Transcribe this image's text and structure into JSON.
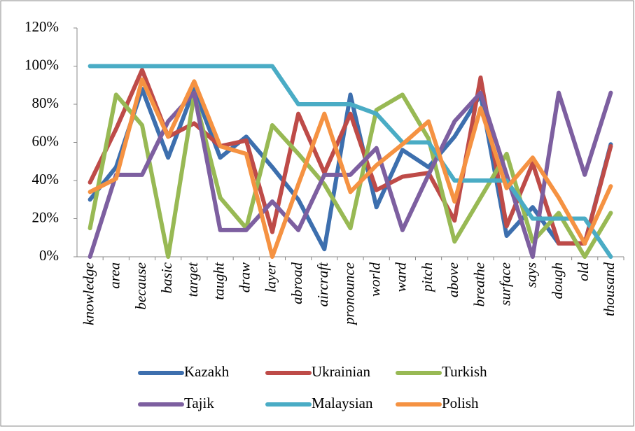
{
  "chart_data": {
    "type": "line",
    "categories": [
      "knowledge",
      "area",
      "because",
      "basic",
      "target",
      "taught",
      "draw",
      "layer",
      "abroad",
      "aircraft",
      "pronounce",
      "world",
      "ward",
      "pitch",
      "above",
      "breathe",
      "surface",
      "says",
      "dough",
      "old",
      "thousand"
    ],
    "series": [
      {
        "name": "Kazakh",
        "color": "#3d6fae",
        "values": [
          30,
          47,
          88,
          52,
          88,
          52,
          63,
          47,
          30,
          4,
          85,
          26,
          56,
          47,
          63,
          85,
          11,
          26,
          7,
          7,
          59
        ]
      },
      {
        "name": "Ukrainian",
        "color": "#be4b48",
        "values": [
          39,
          67,
          98,
          63,
          70,
          58,
          61,
          13,
          75,
          44,
          75,
          35,
          42,
          44,
          19,
          94,
          16,
          49,
          7,
          7,
          58
        ]
      },
      {
        "name": "Turkish",
        "color": "#98b954",
        "values": [
          15,
          85,
          69,
          0,
          85,
          31,
          15,
          69,
          54,
          38,
          15,
          77,
          85,
          62,
          8,
          31,
          54,
          8,
          23,
          0,
          23
        ]
      },
      {
        "name": "Tajik",
        "color": "#7d5fa0",
        "values": [
          0,
          43,
          43,
          71,
          86,
          14,
          14,
          29,
          14,
          43,
          43,
          57,
          14,
          43,
          71,
          86,
          43,
          0,
          86,
          43,
          86
        ]
      },
      {
        "name": "Malaysian",
        "color": "#4aacc5",
        "values": [
          100,
          100,
          100,
          100,
          100,
          100,
          100,
          100,
          80,
          80,
          80,
          75,
          60,
          60,
          40,
          40,
          40,
          20,
          20,
          20,
          0
        ]
      },
      {
        "name": "Polish",
        "color": "#f59242",
        "values": [
          34,
          41,
          93,
          63,
          92,
          58,
          54,
          0,
          38,
          75,
          34,
          48,
          59,
          71,
          29,
          78,
          36,
          52,
          31,
          7,
          37
        ]
      }
    ],
    "ylim": [
      0,
      120
    ],
    "yticks": [
      {
        "value": 0,
        "label": "0%"
      },
      {
        "value": 20,
        "label": "20%"
      },
      {
        "value": 40,
        "label": "40%"
      },
      {
        "value": 60,
        "label": "60%"
      },
      {
        "value": 80,
        "label": "80%"
      },
      {
        "value": 100,
        "label": "100%"
      },
      {
        "value": 120,
        "label": "120%"
      }
    ],
    "legend": "bottom"
  }
}
